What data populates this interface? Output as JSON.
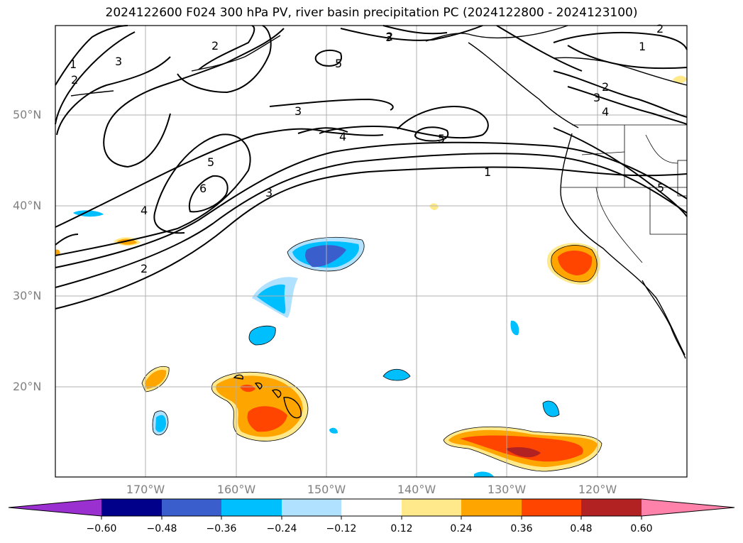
{
  "title": "2024122600 F024 300 hPa PV, river basin precipitation PC (2024122800 - 2024123100)",
  "latitude_labels": [
    "50°N",
    "40°N",
    "30°N",
    "20°N"
  ],
  "longitude_labels": [
    "170°W",
    "160°W",
    "150°W",
    "140°W",
    "130°W",
    "120°W"
  ],
  "contour_labels": [
    "1",
    "2",
    "3",
    "4",
    "5",
    "6"
  ],
  "colorbar": {
    "tick_labels": [
      "−0.60",
      "−0.48",
      "−0.36",
      "−0.24",
      "−0.12",
      "0.12",
      "0.24",
      "0.36",
      "0.48",
      "0.60"
    ],
    "colors": [
      "#9b30d0",
      "#00008b",
      "#3a5fcd",
      "#00bfff",
      "#b0e2ff",
      "#ffffff",
      "#ffe98a",
      "#ffa500",
      "#ff4500",
      "#b22222",
      "#ff82ab"
    ]
  }
}
